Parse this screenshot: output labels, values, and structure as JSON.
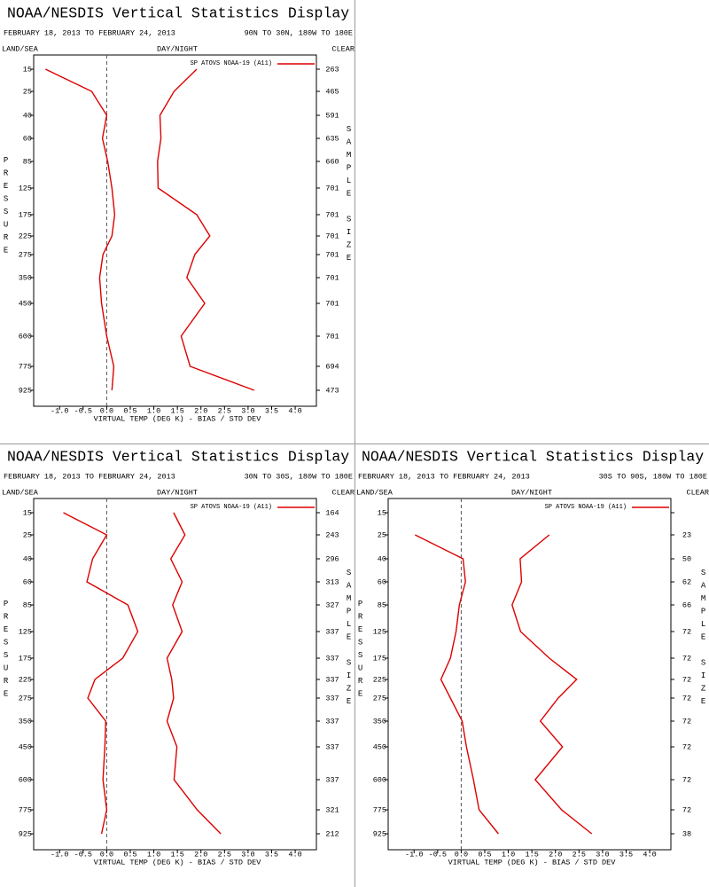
{
  "chart_data": [
    {
      "type": "line",
      "title": "NOAA/NESDIS Vertical Statistics Display",
      "date_range": "FEBRUARY 18, 2013 TO FEBRUARY 24, 2013",
      "region": "90N TO 30N, 180W TO 180E",
      "land_sea_label": "LAND/SEA",
      "day_night_label": "DAY/NIGHT",
      "clear_label": "CLEAR",
      "y_label": "PRESSURE",
      "y2_label": "SAMPLE SIZE",
      "x_label": "VIRTUAL TEMP (DEG K) - BIAS / STD DEV",
      "categories": [
        15,
        25,
        40,
        60,
        85,
        125,
        175,
        225,
        275,
        350,
        450,
        600,
        775,
        925
      ],
      "sample_size": [
        263,
        465,
        591,
        635,
        660,
        701,
        701,
        701,
        701,
        701,
        701,
        701,
        694,
        473
      ],
      "series": [
        {
          "name": "SP ATOVS NOAA-19 (A11)",
          "color": "#dd0000",
          "bias": [
            -1.3,
            -0.32,
            0.0,
            -0.09,
            0.02,
            0.11,
            0.17,
            0.11,
            -0.08,
            -0.15,
            -0.11,
            0.0,
            0.15,
            0.11
          ],
          "std_dev": [
            1.91,
            1.43,
            1.13,
            1.15,
            1.08,
            1.09,
            1.91,
            2.19,
            1.87,
            1.7,
            2.08,
            1.58,
            1.77,
            3.13
          ]
        }
      ],
      "xlim": [
        -1.55,
        4.45
      ],
      "xticks": [
        {
          "value": -1,
          "label": "-1.0"
        },
        -0.5,
        {
          "value": 0,
          "label": "0.0"
        },
        0.5,
        {
          "value": 1,
          "label": "1.0"
        },
        1.5,
        {
          "value": 2,
          "label": "2.0"
        },
        2.5,
        {
          "value": 3,
          "label": "3.0"
        },
        3.5,
        {
          "value": 4,
          "label": "4.0"
        }
      ]
    },
    {
      "type": "line",
      "title": "NOAA/NESDIS Vertical Statistics Display",
      "date_range": "FEBRUARY 18, 2013 TO FEBRUARY 24, 2013",
      "region": "30N TO 30S, 180W TO 180E",
      "land_sea_label": "LAND/SEA",
      "day_night_label": "DAY/NIGHT",
      "clear_label": "CLEAR",
      "y_label": "PRESSURE",
      "y2_label": "SAMPLE SIZE",
      "x_label": "VIRTUAL TEMP (DEG K) - BIAS / STD DEV",
      "categories": [
        15,
        25,
        40,
        60,
        85,
        125,
        175,
        225,
        275,
        350,
        450,
        600,
        775,
        925
      ],
      "sample_size": [
        164,
        243,
        296,
        313,
        327,
        337,
        337,
        337,
        337,
        337,
        337,
        337,
        321,
        212
      ],
      "series": [
        {
          "name": "SP ATOVS NOAA-19 (A11)",
          "color": "#dd0000",
          "bias": [
            -0.92,
            0.0,
            -0.3,
            -0.42,
            0.45,
            0.66,
            0.34,
            -0.25,
            -0.4,
            -0.02,
            -0.04,
            -0.08,
            0.0,
            -0.11
          ],
          "std_dev": [
            1.42,
            1.66,
            1.36,
            1.6,
            1.4,
            1.6,
            1.28,
            1.38,
            1.42,
            1.28,
            1.49,
            1.43,
            1.92,
            2.42
          ]
        }
      ],
      "xlim": [
        -1.55,
        4.45
      ],
      "xticks": [
        {
          "value": -1,
          "label": "-1.0"
        },
        -0.5,
        {
          "value": 0,
          "label": "0.0"
        },
        0.5,
        {
          "value": 1,
          "label": "1.0"
        },
        1.5,
        {
          "value": 2,
          "label": "2.0"
        },
        2.5,
        {
          "value": 3,
          "label": "3.0"
        },
        3.5,
        {
          "value": 4,
          "label": "4.0"
        }
      ]
    },
    {
      "type": "line",
      "title": "NOAA/NESDIS Vertical Statistics Display",
      "date_range": "FEBRUARY 18, 2013 TO FEBRUARY 24, 2013",
      "region": "30S TO 90S, 180W TO 180E",
      "land_sea_label": "LAND/SEA",
      "day_night_label": "DAY/NIGHT",
      "clear_label": "CLEAR",
      "y_label": "PRESSURE",
      "y2_label": "SAMPLE SIZE",
      "x_label": "VIRTUAL TEMP (DEG K) - BIAS / STD DEV",
      "categories": [
        15,
        25,
        40,
        60,
        85,
        125,
        175,
        225,
        275,
        350,
        450,
        600,
        775,
        925
      ],
      "sample_size": [
        null,
        23,
        50,
        62,
        66,
        72,
        72,
        72,
        72,
        72,
        72,
        72,
        72,
        38
      ],
      "series": [
        {
          "name": "SP ATOVS NOAA-19 (A11)",
          "color": "#dd0000",
          "bias": [
            null,
            -0.98,
            0.04,
            0.09,
            -0.04,
            -0.11,
            -0.23,
            -0.43,
            -0.23,
            0.02,
            0.11,
            0.26,
            0.38,
            0.79
          ],
          "std_dev": [
            null,
            1.87,
            1.25,
            1.28,
            1.08,
            1.26,
            1.87,
            2.45,
            2.06,
            1.68,
            2.15,
            1.57,
            2.13,
            2.77
          ]
        }
      ],
      "xlim": [
        -1.55,
        4.45
      ],
      "xticks": [
        {
          "value": -1,
          "label": "-1.0"
        },
        -0.5,
        {
          "value": 0,
          "label": "0.0"
        },
        0.5,
        {
          "value": 1,
          "label": "1.0"
        },
        1.5,
        {
          "value": 2,
          "label": "2.0"
        },
        2.5,
        {
          "value": 3,
          "label": "3.0"
        },
        3.5,
        {
          "value": 4,
          "label": "4.0"
        }
      ]
    }
  ]
}
